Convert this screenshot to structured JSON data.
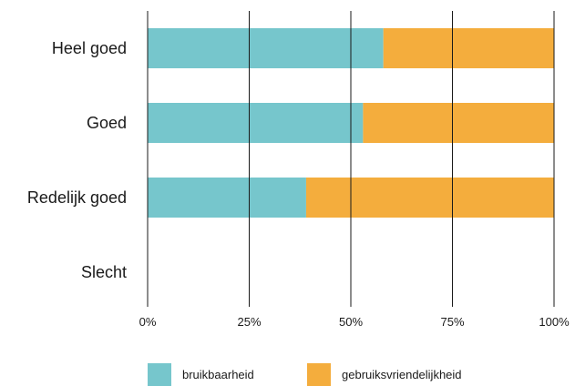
{
  "chart_data": {
    "type": "bar",
    "orientation": "horizontal",
    "stacked": true,
    "normalized": true,
    "categories": [
      "Heel goed",
      "Goed",
      "Redelijk goed",
      "Slecht"
    ],
    "series": [
      {
        "name": "bruikbaarheid",
        "color": "#76c6cc",
        "values": [
          58,
          53,
          39,
          0
        ]
      },
      {
        "name": "gebruiksvriendelijkheid",
        "color": "#f4ad3d",
        "values": [
          42,
          47,
          61,
          0
        ]
      }
    ],
    "xlim": [
      0,
      100
    ],
    "xticks": [
      "0%",
      "25%",
      "50%",
      "75%",
      "100%"
    ],
    "grid": "vertical",
    "legend_position": "bottom"
  }
}
